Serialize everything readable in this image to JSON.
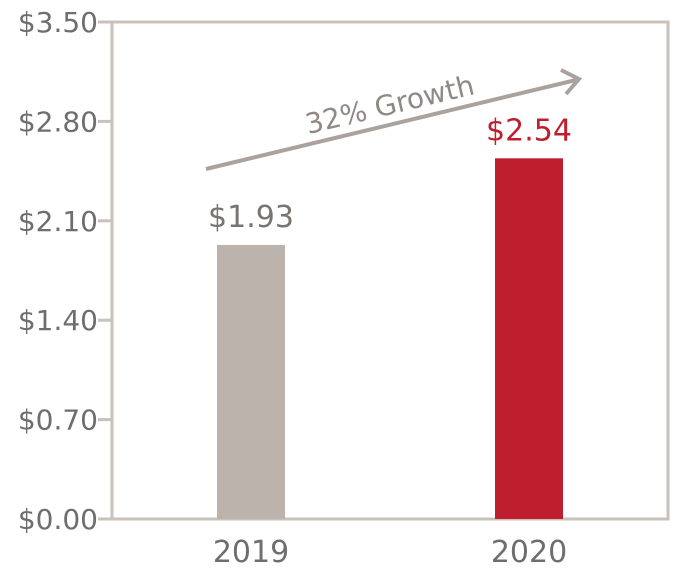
{
  "chart_data": {
    "type": "bar",
    "title": "",
    "xlabel": "",
    "ylabel": "",
    "categories": [
      "2019",
      "2020"
    ],
    "values": [
      1.93,
      2.54
    ],
    "value_labels": [
      "$1.93",
      "$2.54"
    ],
    "bar_colors": [
      "#bcb4ac",
      "#be1e2d"
    ],
    "label_colors": [
      "#7a7470",
      "#be1e2d"
    ],
    "ylim": [
      0,
      3.5
    ],
    "yticks": [
      0,
      0.7,
      1.4,
      2.1,
      2.8,
      3.5
    ],
    "ytick_labels": [
      "$0.00",
      "$0.70",
      "$1.40",
      "$2.10",
      "$2.80",
      "$3.50"
    ],
    "annotation": "32% Growth",
    "frame_color": "#c9c1ba",
    "grid": false
  }
}
